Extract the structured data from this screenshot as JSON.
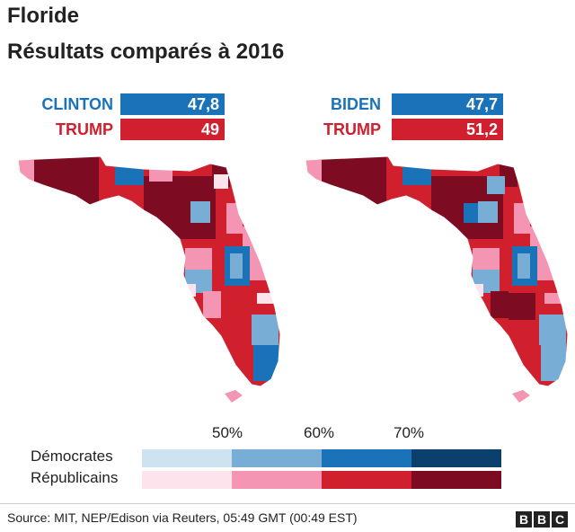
{
  "title": "Floride",
  "subtitle": "Résultats comparés à 2016",
  "left_panel": {
    "dem": {
      "name": "CLINTON",
      "value": "47,8",
      "pct": 47.8
    },
    "rep": {
      "name": "TRUMP",
      "value": "49",
      "pct": 49
    }
  },
  "right_panel": {
    "dem": {
      "name": "BIDEN",
      "value": "47,7",
      "pct": 47.7
    },
    "rep": {
      "name": "TRUMP",
      "value": "51,2",
      "pct": 51.2
    }
  },
  "legend": {
    "ticks": [
      "50%",
      "60%",
      "70%"
    ],
    "dem_label": "Démocrates",
    "rep_label": "Républicains",
    "dem_colors": [
      "#cde3f0",
      "#78aed6",
      "#1a73b8",
      "#0b3f6e"
    ],
    "rep_colors": [
      "#fde3ec",
      "#f595b4",
      "#d0202e",
      "#7d0c22"
    ]
  },
  "colors": {
    "dem": "#1a73b8",
    "rep": "#d0202e"
  },
  "source": "Source: MIT, NEP/Edison via Reuters, 05:49 GMT (00:49 EST)",
  "logo": "BBC"
}
